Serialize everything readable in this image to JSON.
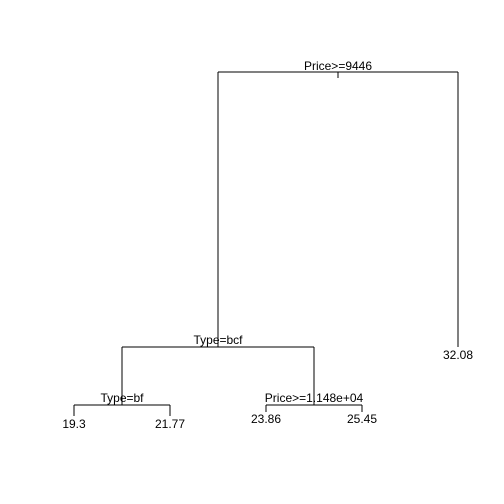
{
  "tree": {
    "type": "regression-tree",
    "root": {
      "split": "Price>=9446",
      "left": {
        "split": "Type=bcf",
        "left": {
          "split": "Type=bf",
          "left": {
            "leaf": "19.3"
          },
          "right": {
            "leaf": "21.77"
          }
        },
        "right": {
          "split": "Price>=1.148e+04",
          "left": {
            "leaf": "23.86"
          },
          "right": {
            "leaf": "25.45"
          }
        }
      },
      "right": {
        "leaf": "32.08"
      }
    }
  }
}
